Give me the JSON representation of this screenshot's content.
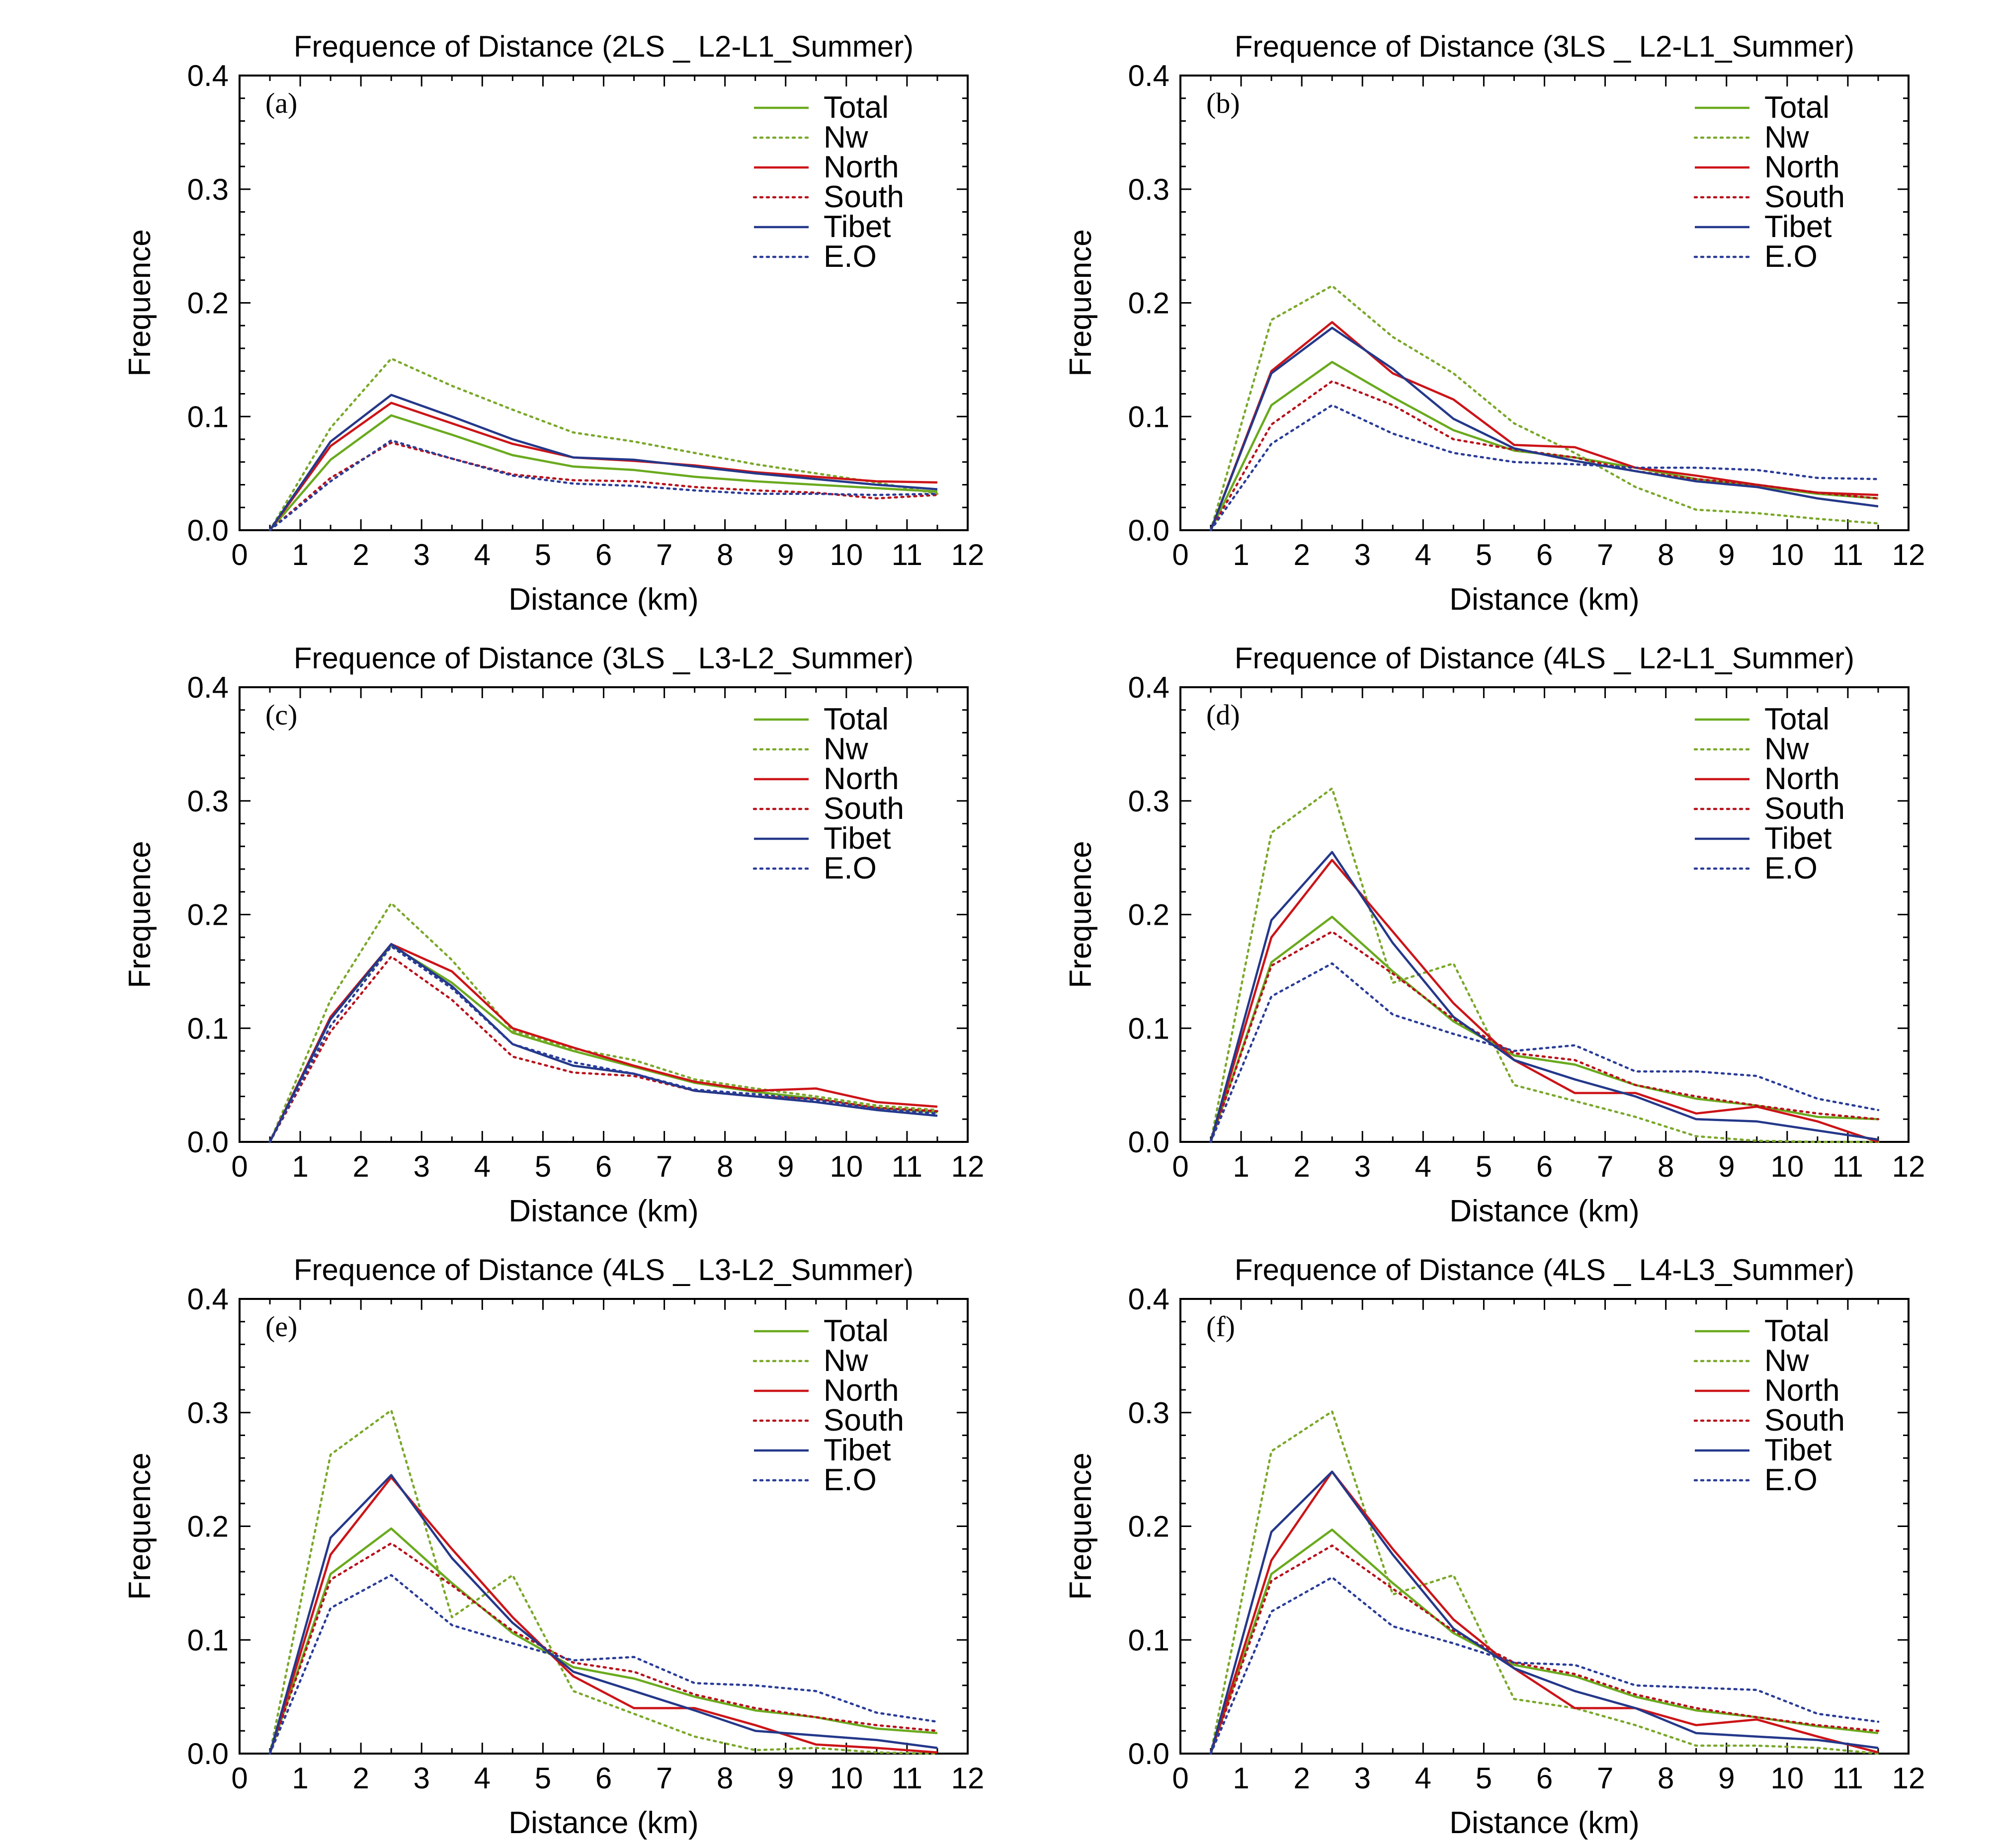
{
  "colors": {
    "Total": "#6aaa1e",
    "Nw": "#7aa82a",
    "North": "#cc1418",
    "South": "#b8121c",
    "Tibet": "#24388a",
    "E.O": "#2a3c98"
  },
  "chart_data": [
    {
      "type": "line",
      "panel": "(a)",
      "title": "Frequence of Distance (2LS _ L2-L1_Summer)",
      "xlabel": "Distance (km)",
      "ylabel": "Frequence",
      "xlim": [
        0,
        12
      ],
      "ylim": [
        0,
        0.4
      ],
      "xticks": [
        "0",
        "1",
        "2",
        "3",
        "4",
        "5",
        "6",
        "7",
        "8",
        "9",
        "10",
        "11",
        "12"
      ],
      "yticks": [
        "0.0",
        "0.1",
        "0.2",
        "0.3",
        "0.4"
      ],
      "legend": "top-right",
      "x": [
        0.5,
        1.5,
        2.5,
        3.5,
        4.5,
        5.5,
        6.5,
        7.5,
        8.5,
        9.5,
        10.5,
        11.5
      ],
      "series": [
        {
          "name": "Total",
          "style": "solid",
          "values": [
            0,
            0.062,
            0.101,
            0.084,
            0.066,
            0.056,
            0.053,
            0.047,
            0.043,
            0.04,
            0.037,
            0.034
          ]
        },
        {
          "name": "Nw",
          "style": "dotted",
          "values": [
            0,
            0.09,
            0.151,
            0.127,
            0.106,
            0.086,
            0.078,
            0.068,
            0.058,
            0.05,
            0.042,
            0.032
          ]
        },
        {
          "name": "North",
          "style": "solid",
          "values": [
            0,
            0.074,
            0.112,
            0.094,
            0.076,
            0.064,
            0.061,
            0.057,
            0.051,
            0.047,
            0.043,
            0.042
          ]
        },
        {
          "name": "South",
          "style": "dotted",
          "values": [
            0,
            0.046,
            0.077,
            0.063,
            0.049,
            0.044,
            0.043,
            0.038,
            0.035,
            0.033,
            0.028,
            0.031
          ]
        },
        {
          "name": "Tibet",
          "style": "solid",
          "values": [
            0,
            0.078,
            0.119,
            0.1,
            0.08,
            0.064,
            0.062,
            0.056,
            0.05,
            0.045,
            0.04,
            0.036
          ]
        },
        {
          "name": "E.O",
          "style": "dotted",
          "values": [
            0,
            0.043,
            0.079,
            0.063,
            0.048,
            0.041,
            0.039,
            0.035,
            0.032,
            0.032,
            0.031,
            0.032
          ]
        }
      ]
    },
    {
      "type": "line",
      "panel": "(b)",
      "title": "Frequence of Distance (3LS _ L2-L1_Summer)",
      "xlabel": "Distance (km)",
      "ylabel": "Frequence",
      "xlim": [
        0,
        12
      ],
      "ylim": [
        0,
        0.4
      ],
      "xticks": [
        "0",
        "1",
        "2",
        "3",
        "4",
        "5",
        "6",
        "7",
        "8",
        "9",
        "10",
        "11",
        "12"
      ],
      "yticks": [
        "0.0",
        "0.1",
        "0.2",
        "0.3",
        "0.4"
      ],
      "legend": "top-right",
      "x": [
        0.5,
        1.5,
        2.5,
        3.5,
        4.5,
        5.5,
        6.5,
        7.5,
        8.5,
        9.5,
        10.5,
        11.5
      ],
      "series": [
        {
          "name": "Total",
          "style": "solid",
          "values": [
            0,
            0.11,
            0.148,
            0.117,
            0.088,
            0.07,
            0.064,
            0.055,
            0.045,
            0.039,
            0.032,
            0.028
          ]
        },
        {
          "name": "Nw",
          "style": "dotted",
          "values": [
            0,
            0.185,
            0.215,
            0.17,
            0.138,
            0.094,
            0.068,
            0.038,
            0.018,
            0.015,
            0.01,
            0.006
          ]
        },
        {
          "name": "North",
          "style": "solid",
          "values": [
            0,
            0.14,
            0.183,
            0.138,
            0.115,
            0.075,
            0.073,
            0.055,
            0.048,
            0.04,
            0.033,
            0.031
          ]
        },
        {
          "name": "South",
          "style": "dotted",
          "values": [
            0,
            0.093,
            0.131,
            0.11,
            0.08,
            0.071,
            0.064,
            0.052,
            0.045,
            0.04,
            0.033,
            0.028
          ]
        },
        {
          "name": "Tibet",
          "style": "solid",
          "values": [
            0,
            0.138,
            0.178,
            0.142,
            0.098,
            0.072,
            0.061,
            0.052,
            0.043,
            0.038,
            0.028,
            0.021
          ]
        },
        {
          "name": "E.O",
          "style": "dotted",
          "values": [
            0,
            0.076,
            0.11,
            0.085,
            0.068,
            0.06,
            0.058,
            0.055,
            0.055,
            0.053,
            0.046,
            0.045
          ]
        }
      ]
    },
    {
      "type": "line",
      "panel": "(c)",
      "title": "Frequence of Distance (3LS _ L3-L2_Summer)",
      "xlabel": "Distance (km)",
      "ylabel": "Frequence",
      "xlim": [
        0,
        12
      ],
      "ylim": [
        0,
        0.4
      ],
      "xticks": [
        "0",
        "1",
        "2",
        "3",
        "4",
        "5",
        "6",
        "7",
        "8",
        "9",
        "10",
        "11",
        "12"
      ],
      "yticks": [
        "0.0",
        "0.1",
        "0.2",
        "0.3",
        "0.4"
      ],
      "legend": "top-right",
      "x": [
        0.5,
        1.5,
        2.5,
        3.5,
        4.5,
        5.5,
        6.5,
        7.5,
        8.5,
        9.5,
        10.5,
        11.5
      ],
      "series": [
        {
          "name": "Total",
          "style": "solid",
          "values": [
            0,
            0.108,
            0.173,
            0.14,
            0.096,
            0.08,
            0.066,
            0.052,
            0.044,
            0.038,
            0.03,
            0.026
          ]
        },
        {
          "name": "Nw",
          "style": "dotted",
          "values": [
            0,
            0.125,
            0.21,
            0.16,
            0.098,
            0.082,
            0.072,
            0.055,
            0.047,
            0.04,
            0.032,
            0.028
          ]
        },
        {
          "name": "North",
          "style": "solid",
          "values": [
            0,
            0.11,
            0.174,
            0.15,
            0.1,
            0.083,
            0.067,
            0.053,
            0.045,
            0.047,
            0.035,
            0.031
          ]
        },
        {
          "name": "South",
          "style": "dotted",
          "values": [
            0,
            0.097,
            0.163,
            0.125,
            0.075,
            0.061,
            0.058,
            0.045,
            0.04,
            0.038,
            0.03,
            0.027
          ]
        },
        {
          "name": "Tibet",
          "style": "solid",
          "values": [
            0,
            0.108,
            0.174,
            0.137,
            0.086,
            0.067,
            0.06,
            0.045,
            0.04,
            0.035,
            0.028,
            0.023
          ]
        },
        {
          "name": "E.O",
          "style": "dotted",
          "values": [
            0,
            0.102,
            0.172,
            0.135,
            0.086,
            0.07,
            0.06,
            0.046,
            0.042,
            0.037,
            0.029,
            0.025
          ]
        }
      ]
    },
    {
      "type": "line",
      "panel": "(d)",
      "title": "Frequence of Distance (4LS _ L2-L1_Summer)",
      "xlabel": "Distance (km)",
      "ylabel": "Frequence",
      "xlim": [
        0,
        12
      ],
      "ylim": [
        0,
        0.4
      ],
      "xticks": [
        "0",
        "1",
        "2",
        "3",
        "4",
        "5",
        "6",
        "7",
        "8",
        "9",
        "10",
        "11",
        "12"
      ],
      "yticks": [
        "0.0",
        "0.1",
        "0.2",
        "0.3",
        "0.4"
      ],
      "legend": "top-right",
      "x": [
        0.5,
        1.5,
        2.5,
        3.5,
        4.5,
        5.5,
        6.5,
        7.5,
        8.5,
        9.5,
        10.5,
        11.5
      ],
      "series": [
        {
          "name": "Total",
          "style": "solid",
          "values": [
            0,
            0.158,
            0.198,
            0.15,
            0.106,
            0.076,
            0.068,
            0.05,
            0.038,
            0.032,
            0.022,
            0.02
          ]
        },
        {
          "name": "Nw",
          "style": "dotted",
          "values": [
            0,
            0.272,
            0.311,
            0.14,
            0.157,
            0.05,
            0.036,
            0.022,
            0.005,
            0.001,
            0.0,
            0.0
          ]
        },
        {
          "name": "North",
          "style": "solid",
          "values": [
            0,
            0.18,
            0.248,
            0.185,
            0.122,
            0.072,
            0.043,
            0.043,
            0.025,
            0.031,
            0.018,
            0.0
          ]
        },
        {
          "name": "South",
          "style": "dotted",
          "values": [
            0,
            0.155,
            0.185,
            0.148,
            0.108,
            0.078,
            0.072,
            0.05,
            0.04,
            0.032,
            0.025,
            0.02
          ]
        },
        {
          "name": "Tibet",
          "style": "solid",
          "values": [
            0,
            0.195,
            0.255,
            0.175,
            0.11,
            0.072,
            0.055,
            0.04,
            0.02,
            0.018,
            0.01,
            0.002
          ]
        },
        {
          "name": "E.O",
          "style": "dotted",
          "values": [
            0,
            0.128,
            0.157,
            0.112,
            0.095,
            0.08,
            0.085,
            0.062,
            0.062,
            0.058,
            0.038,
            0.028
          ]
        }
      ]
    },
    {
      "type": "line",
      "panel": "(e)",
      "title": "Frequence of Distance (4LS _ L3-L2_Summer)",
      "xlabel": "Distance (km)",
      "ylabel": "Frequence",
      "xlim": [
        0,
        12
      ],
      "ylim": [
        0,
        0.4
      ],
      "xticks": [
        "0",
        "1",
        "2",
        "3",
        "4",
        "5",
        "6",
        "7",
        "8",
        "9",
        "10",
        "11",
        "12"
      ],
      "yticks": [
        "0.0",
        "0.1",
        "0.2",
        "0.3",
        "0.4"
      ],
      "legend": "top-right",
      "x": [
        0.5,
        1.5,
        2.5,
        3.5,
        4.5,
        5.5,
        6.5,
        7.5,
        8.5,
        9.5,
        10.5,
        11.5
      ],
      "series": [
        {
          "name": "Total",
          "style": "solid",
          "values": [
            0,
            0.158,
            0.198,
            0.15,
            0.106,
            0.076,
            0.066,
            0.05,
            0.038,
            0.032,
            0.022,
            0.018
          ]
        },
        {
          "name": "Nw",
          "style": "dotted",
          "values": [
            0,
            0.263,
            0.302,
            0.12,
            0.157,
            0.055,
            0.035,
            0.015,
            0.003,
            0.005,
            0.001,
            0.0
          ]
        },
        {
          "name": "North",
          "style": "solid",
          "values": [
            0,
            0.175,
            0.243,
            0.18,
            0.12,
            0.068,
            0.04,
            0.04,
            0.025,
            0.008,
            0.005,
            0.001
          ]
        },
        {
          "name": "South",
          "style": "dotted",
          "values": [
            0,
            0.153,
            0.185,
            0.148,
            0.108,
            0.08,
            0.072,
            0.052,
            0.04,
            0.032,
            0.025,
            0.02
          ]
        },
        {
          "name": "Tibet",
          "style": "solid",
          "values": [
            0,
            0.19,
            0.245,
            0.172,
            0.115,
            0.072,
            0.055,
            0.038,
            0.02,
            0.016,
            0.012,
            0.005
          ]
        },
        {
          "name": "E.O",
          "style": "dotted",
          "values": [
            0,
            0.128,
            0.157,
            0.113,
            0.097,
            0.082,
            0.085,
            0.062,
            0.06,
            0.055,
            0.036,
            0.028
          ]
        }
      ]
    },
    {
      "type": "line",
      "panel": "(f)",
      "title": "Frequence of Distance (4LS _ L4-L3_Summer)",
      "xlabel": "Distance (km)",
      "ylabel": "Frequence",
      "xlim": [
        0,
        12
      ],
      "ylim": [
        0,
        0.4
      ],
      "xticks": [
        "0",
        "1",
        "2",
        "3",
        "4",
        "5",
        "6",
        "7",
        "8",
        "9",
        "10",
        "11",
        "12"
      ],
      "yticks": [
        "0.0",
        "0.1",
        "0.2",
        "0.3",
        "0.4"
      ],
      "legend": "top-right",
      "x": [
        0.5,
        1.5,
        2.5,
        3.5,
        4.5,
        5.5,
        6.5,
        7.5,
        8.5,
        9.5,
        10.5,
        11.5
      ],
      "series": [
        {
          "name": "Total",
          "style": "solid",
          "values": [
            0,
            0.158,
            0.197,
            0.15,
            0.106,
            0.078,
            0.068,
            0.05,
            0.038,
            0.032,
            0.024,
            0.018
          ]
        },
        {
          "name": "Nw",
          "style": "dotted",
          "values": [
            0,
            0.266,
            0.301,
            0.14,
            0.157,
            0.048,
            0.04,
            0.025,
            0.007,
            0.007,
            0.005,
            0.0
          ]
        },
        {
          "name": "North",
          "style": "solid",
          "values": [
            0,
            0.17,
            0.248,
            0.18,
            0.118,
            0.075,
            0.04,
            0.04,
            0.025,
            0.03,
            0.015,
            0.001
          ]
        },
        {
          "name": "South",
          "style": "dotted",
          "values": [
            0,
            0.152,
            0.183,
            0.145,
            0.108,
            0.08,
            0.07,
            0.052,
            0.04,
            0.032,
            0.025,
            0.02
          ]
        },
        {
          "name": "Tibet",
          "style": "solid",
          "values": [
            0,
            0.195,
            0.248,
            0.175,
            0.11,
            0.075,
            0.055,
            0.04,
            0.018,
            0.015,
            0.012,
            0.005
          ]
        },
        {
          "name": "E.O",
          "style": "dotted",
          "values": [
            0,
            0.125,
            0.155,
            0.112,
            0.097,
            0.08,
            0.078,
            0.06,
            0.058,
            0.056,
            0.035,
            0.028
          ]
        }
      ]
    }
  ]
}
